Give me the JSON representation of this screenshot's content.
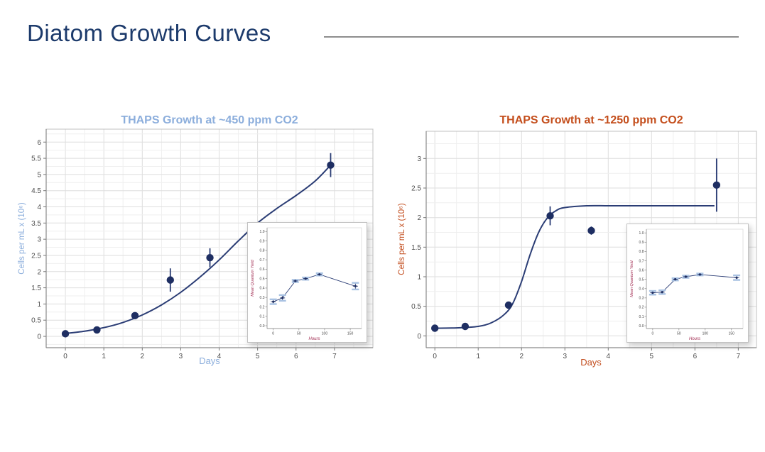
{
  "page": {
    "title": "Diatom Growth Curves",
    "title_color": "#1c3a6b",
    "rule_color": "#8e8e8e",
    "background": "#ffffff"
  },
  "chart_data": [
    {
      "type": "scatter",
      "title": "THAPS Growth at ~450 ppm CO2",
      "title_color": "#8caedc",
      "xlabel": "Days",
      "ylabel": "Cells per mL x (10⁶)",
      "axis_label_color": "#8caedc",
      "tick_color": "#4d4d4d",
      "point_color": "#1e2e62",
      "curve_color": "#2b3d75",
      "grid": "on",
      "legend": "none",
      "xlim": [
        -0.5,
        8.0
      ],
      "ylim": [
        -0.35,
        6.4
      ],
      "xticks": [
        [
          0,
          "0"
        ],
        [
          1,
          "1"
        ],
        [
          2,
          "2"
        ],
        [
          3,
          "3"
        ],
        [
          4,
          "4"
        ],
        [
          5,
          "5"
        ],
        [
          6,
          "6"
        ],
        [
          7,
          "7"
        ]
      ],
      "yticks": [
        [
          0,
          "0"
        ],
        [
          0.5,
          "0.5"
        ],
        [
          1,
          "1"
        ],
        [
          1.5,
          "1.5"
        ],
        [
          2,
          "2"
        ],
        [
          2.5,
          "2.5"
        ],
        [
          3,
          "3"
        ],
        [
          3.5,
          "3.5"
        ],
        [
          4,
          "4"
        ],
        [
          4.5,
          "4.5"
        ],
        [
          5,
          "5"
        ],
        [
          5.5,
          "5.5"
        ],
        [
          6,
          "6"
        ]
      ],
      "points": [
        {
          "x": 0.0,
          "y": 0.08,
          "err": 0.04
        },
        {
          "x": 0.82,
          "y": 0.2,
          "err": 0.05
        },
        {
          "x": 1.81,
          "y": 0.64,
          "err": 0.05
        },
        {
          "x": 2.73,
          "y": 1.74,
          "err": 0.36
        },
        {
          "x": 3.76,
          "y": 2.43,
          "err": 0.29
        },
        {
          "x": 6.9,
          "y": 5.29,
          "err": 0.37
        }
      ],
      "fit_curve": [
        [
          0,
          0.09
        ],
        [
          0.5,
          0.16
        ],
        [
          1,
          0.27
        ],
        [
          1.5,
          0.43
        ],
        [
          2,
          0.66
        ],
        [
          2.5,
          0.97
        ],
        [
          3,
          1.36
        ],
        [
          3.5,
          1.83
        ],
        [
          4,
          2.36
        ],
        [
          4.5,
          2.95
        ],
        [
          5,
          3.5
        ],
        [
          5.5,
          3.95
        ],
        [
          6,
          4.35
        ],
        [
          6.5,
          4.8
        ],
        [
          6.9,
          5.29
        ]
      ],
      "inset": {
        "xlabel": "Hours",
        "ylabel": "Mean Quantum Yield",
        "label_color": "#a02a50",
        "line_color": "#2b3d75",
        "marker_color": "#1e2e62",
        "errorcap_color": "#a9c2e2",
        "xlim": [
          -12,
          172
        ],
        "ylim": [
          -0.03,
          1.04
        ],
        "xticks": [
          [
            0,
            "0"
          ],
          [
            50,
            "50"
          ],
          [
            100,
            "100"
          ],
          [
            150,
            "150"
          ]
        ],
        "yticks": [
          [
            0,
            "0.0"
          ],
          [
            0.1,
            "0.1"
          ],
          [
            0.2,
            "0.2"
          ],
          [
            0.3,
            "0.3"
          ],
          [
            0.4,
            "0.4"
          ],
          [
            0.5,
            "0.5"
          ],
          [
            0.6,
            "0.6"
          ],
          [
            0.7,
            "0.7"
          ],
          [
            0.8,
            "0.8"
          ],
          [
            0.9,
            "0.9"
          ],
          [
            1,
            "1.0"
          ]
        ],
        "points": [
          {
            "x": 0,
            "y": 0.255,
            "err": 0.025
          },
          {
            "x": 18,
            "y": 0.295,
            "err": 0.03
          },
          {
            "x": 43,
            "y": 0.475,
            "err": 0.012
          },
          {
            "x": 63,
            "y": 0.5,
            "err": 0.012
          },
          {
            "x": 90,
            "y": 0.545,
            "err": 0.012
          },
          {
            "x": 160,
            "y": 0.42,
            "err": 0.035
          }
        ]
      }
    },
    {
      "type": "scatter",
      "title": "THAPS Growth at ~1250 ppm CO2",
      "title_color": "#c44e1c",
      "xlabel": "Days",
      "ylabel": "Cells per mL x (10⁶)",
      "axis_label_color": "#c34e1f",
      "tick_color": "#4d4d4d",
      "point_color": "#1e2e62",
      "curve_color": "#2b3d75",
      "grid": "on",
      "legend": "none",
      "xlim": [
        -0.2,
        7.42
      ],
      "ylim": [
        -0.2,
        3.46
      ],
      "xticks": [
        [
          0,
          "0"
        ],
        [
          1,
          "1"
        ],
        [
          2,
          "2"
        ],
        [
          3,
          "3"
        ],
        [
          4,
          "4"
        ],
        [
          5,
          "5"
        ],
        [
          6,
          "6"
        ],
        [
          7,
          "7"
        ]
      ],
      "yticks": [
        [
          0,
          "0"
        ],
        [
          0.5,
          "0.5"
        ],
        [
          1,
          "1"
        ],
        [
          1.5,
          "1.5"
        ],
        [
          2,
          "2"
        ],
        [
          2.5,
          "2.5"
        ],
        [
          3,
          "3"
        ]
      ],
      "points": [
        {
          "x": 0.0,
          "y": 0.13,
          "err": 0.02
        },
        {
          "x": 0.7,
          "y": 0.16,
          "err": 0.02
        },
        {
          "x": 1.7,
          "y": 0.52,
          "err": 0.03
        },
        {
          "x": 2.66,
          "y": 2.03,
          "err": 0.16
        },
        {
          "x": 3.61,
          "y": 1.78,
          "err": 0.07
        },
        {
          "x": 6.5,
          "y": 2.55,
          "err": 0.45
        }
      ],
      "fit_curve": [
        [
          0,
          0.13
        ],
        [
          0.5,
          0.135
        ],
        [
          1,
          0.16
        ],
        [
          1.3,
          0.22
        ],
        [
          1.6,
          0.36
        ],
        [
          1.8,
          0.55
        ],
        [
          2.0,
          0.92
        ],
        [
          2.2,
          1.38
        ],
        [
          2.4,
          1.76
        ],
        [
          2.6,
          2.0
        ],
        [
          2.8,
          2.12
        ],
        [
          3.0,
          2.17
        ],
        [
          3.5,
          2.2
        ],
        [
          4,
          2.2
        ],
        [
          4.5,
          2.2
        ],
        [
          5,
          2.2
        ],
        [
          5.5,
          2.2
        ],
        [
          6,
          2.2
        ],
        [
          6.45,
          2.2
        ]
      ],
      "inset": {
        "xlabel": "Hours",
        "ylabel": "Mean Quantum Yield",
        "label_color": "#a02a50",
        "line_color": "#2b3d75",
        "marker_color": "#1e2e62",
        "errorcap_color": "#a9c2e2",
        "xlim": [
          -12,
          172
        ],
        "ylim": [
          -0.03,
          1.04
        ],
        "xticks": [
          [
            0,
            "0"
          ],
          [
            50,
            "50"
          ],
          [
            100,
            "100"
          ],
          [
            150,
            "150"
          ]
        ],
        "yticks": [
          [
            0,
            "0.0"
          ],
          [
            0.1,
            "0.1"
          ],
          [
            0.2,
            "0.2"
          ],
          [
            0.3,
            "0.3"
          ],
          [
            0.4,
            "0.4"
          ],
          [
            0.5,
            "0.5"
          ],
          [
            0.6,
            "0.6"
          ],
          [
            0.7,
            "0.7"
          ],
          [
            0.8,
            "0.8"
          ],
          [
            0.9,
            "0.9"
          ],
          [
            1,
            "1.0"
          ]
        ],
        "points": [
          {
            "x": 0,
            "y": 0.355,
            "err": 0.02
          },
          {
            "x": 18,
            "y": 0.362,
            "err": 0.02
          },
          {
            "x": 43,
            "y": 0.5,
            "err": 0.012
          },
          {
            "x": 63,
            "y": 0.528,
            "err": 0.012
          },
          {
            "x": 90,
            "y": 0.552,
            "err": 0.01
          },
          {
            "x": 160,
            "y": 0.518,
            "err": 0.025
          }
        ]
      }
    }
  ]
}
